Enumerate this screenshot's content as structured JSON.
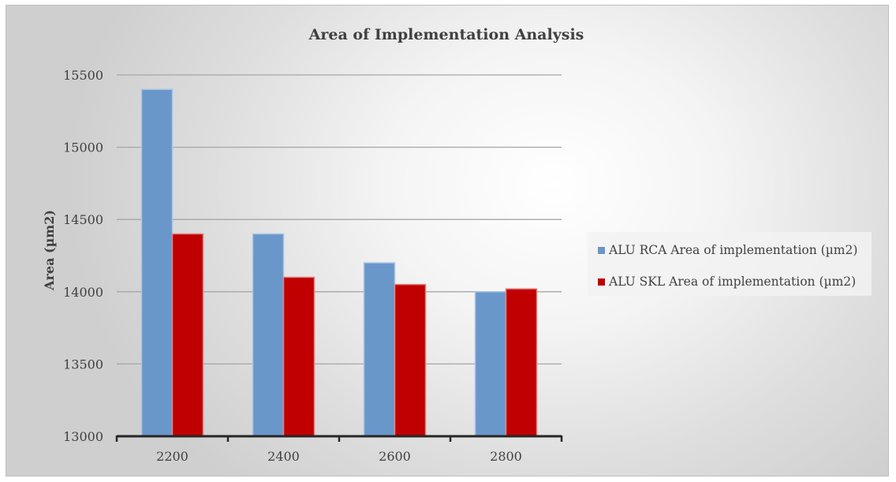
{
  "chart_data": {
    "type": "bar",
    "title": "Area of Implementation Analysis",
    "xlabel": "",
    "ylabel": "Area  (µm2)",
    "categories": [
      "2200",
      "2400",
      "2600",
      "2800"
    ],
    "series": [
      {
        "name": "ALU RCA Area of implementation (µm2)",
        "values": [
          15400,
          14400,
          14200,
          14000
        ],
        "color": "#6a97ca"
      },
      {
        "name": "ALU SKL Area of implementation (µm2)",
        "values": [
          14400,
          14100,
          14050,
          14020
        ],
        "color": "#c00000"
      }
    ],
    "ylim": [
      13000,
      15500
    ],
    "yticks": [
      13000,
      13500,
      14000,
      14500,
      15000,
      15500
    ],
    "grid": true,
    "legend_position": "right"
  }
}
